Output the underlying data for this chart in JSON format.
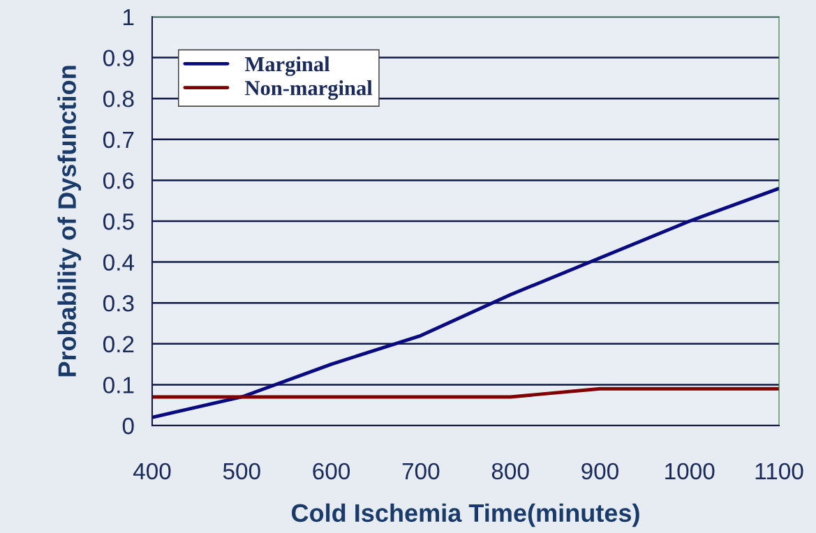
{
  "chart_data": {
    "type": "line",
    "xlabel": "Cold Ischemia Time(minutes)",
    "ylabel": "Probability of Dysfunction",
    "x": [
      400,
      500,
      600,
      700,
      800,
      900,
      1000,
      1100
    ],
    "series": [
      {
        "name": "Marginal",
        "color": "#0a0a80",
        "values": [
          0.02,
          0.07,
          0.15,
          0.22,
          0.32,
          0.41,
          0.5,
          0.58
        ]
      },
      {
        "name": "Non-marginal",
        "color": "#800000",
        "values": [
          0.07,
          0.07,
          0.07,
          0.07,
          0.07,
          0.09,
          0.09,
          0.09
        ]
      }
    ],
    "xlim": [
      400,
      1100
    ],
    "xticks": [
      400,
      500,
      600,
      700,
      800,
      900,
      1000,
      1100
    ],
    "ylim": [
      0,
      1
    ],
    "yticks": [
      0,
      0.1,
      0.2,
      0.3,
      0.4,
      0.5,
      0.6,
      0.7,
      0.8,
      0.9,
      1
    ],
    "grid": "y",
    "legend": "top left",
    "marker": "none",
    "line_style": "solid"
  }
}
